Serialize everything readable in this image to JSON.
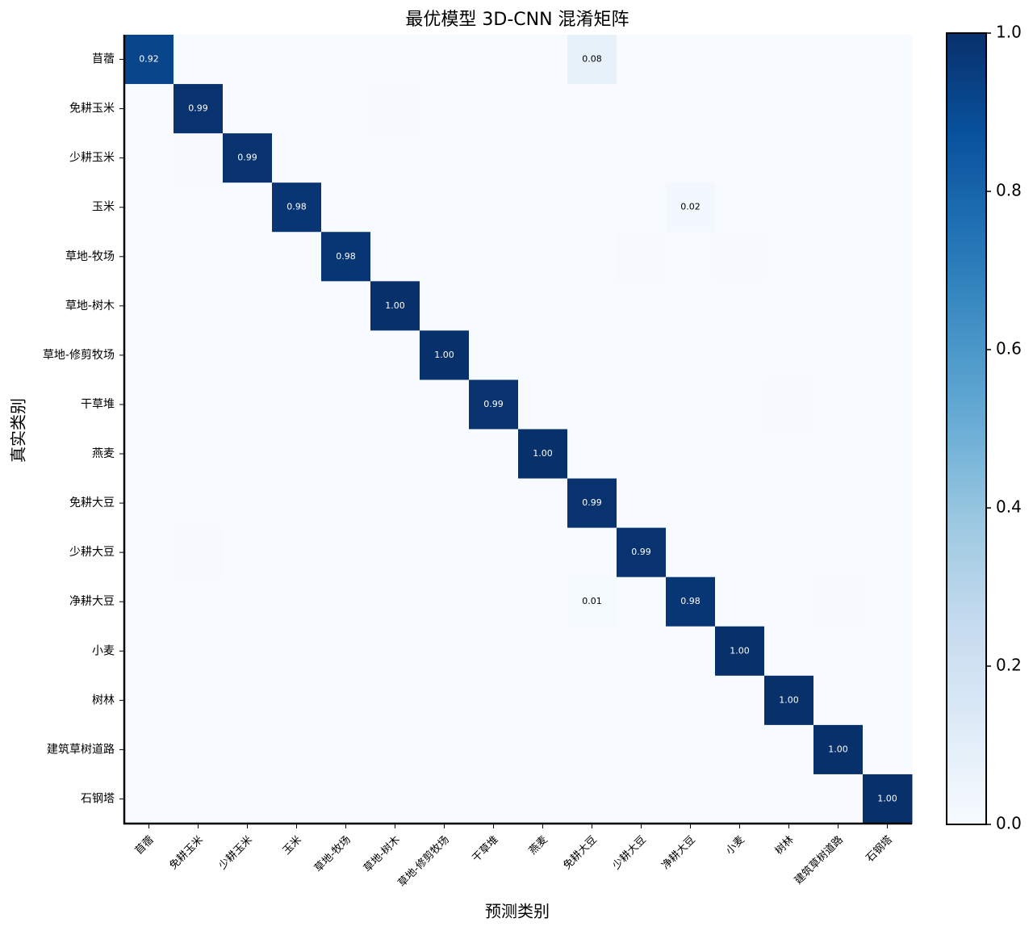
{
  "chart_data": {
    "type": "heatmap",
    "title": "最优模型 3D-CNN 混淆矩阵",
    "xlabel": "预测类别",
    "ylabel": "真实类别",
    "colormap": "Blues",
    "x_categories": [
      "苜蓿",
      "免耕玉米",
      "少耕玉米",
      "玉米",
      "草地-牧场",
      "草地-树木",
      "草地-修剪牧场",
      "干草堆",
      "燕麦",
      "免耕大豆",
      "少耕大豆",
      "净耕大豆",
      "小麦",
      "树林",
      "建筑草树道路",
      "石钢塔"
    ],
    "y_categories": [
      "苜蓿",
      "免耕玉米",
      "少耕玉米",
      "玉米",
      "草地-牧场",
      "草地-树木",
      "草地-修剪牧场",
      "干草堆",
      "燕麦",
      "免耕大豆",
      "少耕大豆",
      "净耕大豆",
      "小麦",
      "树林",
      "建筑草树道路",
      "石钢塔"
    ],
    "values": [
      [
        0.92,
        0,
        0,
        0,
        0,
        0,
        0,
        0,
        0,
        0.08,
        0,
        0,
        0,
        0,
        0,
        0
      ],
      [
        0,
        0.99,
        0,
        0,
        0,
        0.005,
        0,
        0,
        0,
        0,
        0,
        0,
        0,
        0,
        0,
        0
      ],
      [
        0,
        0.005,
        0.99,
        0,
        0,
        0,
        0,
        0,
        0,
        0,
        0,
        0,
        0,
        0,
        0,
        0
      ],
      [
        0,
        0,
        0,
        0.98,
        0,
        0,
        0,
        0,
        0,
        0,
        0,
        0.02,
        0,
        0,
        0,
        0
      ],
      [
        0,
        0,
        0,
        0,
        0.98,
        0,
        0,
        0,
        0,
        0,
        0.005,
        0,
        0.005,
        0,
        0,
        0
      ],
      [
        0,
        0,
        0,
        0,
        0,
        1,
        0,
        0,
        0,
        0,
        0,
        0,
        0,
        0,
        0,
        0
      ],
      [
        0,
        0,
        0,
        0,
        0,
        0,
        1,
        0,
        0,
        0,
        0,
        0,
        0,
        0,
        0,
        0
      ],
      [
        0,
        0,
        0,
        0,
        0,
        0,
        0,
        0.99,
        0,
        0,
        0,
        0,
        0,
        0.005,
        0,
        0
      ],
      [
        0,
        0,
        0,
        0,
        0,
        0,
        0,
        0,
        1,
        0,
        0,
        0,
        0,
        0,
        0,
        0
      ],
      [
        0,
        0,
        0,
        0,
        0,
        0,
        0,
        0,
        0,
        0.99,
        0,
        0,
        0,
        0,
        0,
        0
      ],
      [
        0,
        0.005,
        0,
        0,
        0,
        0,
        0,
        0,
        0,
        0,
        0.99,
        0,
        0,
        0,
        0,
        0
      ],
      [
        0,
        0,
        0,
        0,
        0,
        0,
        0,
        0,
        0,
        0.01,
        0,
        0.98,
        0,
        0,
        0.005,
        0
      ],
      [
        0,
        0,
        0,
        0,
        0,
        0,
        0,
        0,
        0,
        0,
        0,
        0,
        1,
        0,
        0,
        0
      ],
      [
        0,
        0,
        0,
        0,
        0,
        0,
        0,
        0,
        0,
        0,
        0,
        0,
        0,
        1,
        0,
        0
      ],
      [
        0,
        0,
        0,
        0,
        0,
        0,
        0,
        0,
        0,
        0,
        0,
        0,
        0,
        0,
        1,
        0
      ],
      [
        0,
        0,
        0,
        0,
        0,
        0,
        0,
        0,
        0,
        0,
        0,
        0,
        0,
        0,
        0,
        1
      ]
    ],
    "value_labels": [
      [
        "0.92",
        null,
        null,
        null,
        null,
        null,
        null,
        null,
        null,
        "0.08",
        null,
        null,
        null,
        null,
        null,
        null
      ],
      [
        null,
        "0.99",
        null,
        null,
        null,
        null,
        null,
        null,
        null,
        null,
        null,
        null,
        null,
        null,
        null,
        null
      ],
      [
        null,
        null,
        "0.99",
        null,
        null,
        null,
        null,
        null,
        null,
        null,
        null,
        null,
        null,
        null,
        null,
        null
      ],
      [
        null,
        null,
        null,
        "0.98",
        null,
        null,
        null,
        null,
        null,
        null,
        null,
        "0.02",
        null,
        null,
        null,
        null
      ],
      [
        null,
        null,
        null,
        null,
        "0.98",
        null,
        null,
        null,
        null,
        null,
        null,
        null,
        null,
        null,
        null,
        null
      ],
      [
        null,
        null,
        null,
        null,
        null,
        "1.00",
        null,
        null,
        null,
        null,
        null,
        null,
        null,
        null,
        null,
        null
      ],
      [
        null,
        null,
        null,
        null,
        null,
        null,
        "1.00",
        null,
        null,
        null,
        null,
        null,
        null,
        null,
        null,
        null
      ],
      [
        null,
        null,
        null,
        null,
        null,
        null,
        null,
        "0.99",
        null,
        null,
        null,
        null,
        null,
        null,
        null,
        null
      ],
      [
        null,
        null,
        null,
        null,
        null,
        null,
        null,
        null,
        "1.00",
        null,
        null,
        null,
        null,
        null,
        null,
        null
      ],
      [
        null,
        null,
        null,
        null,
        null,
        null,
        null,
        null,
        null,
        "0.99",
        null,
        null,
        null,
        null,
        null,
        null
      ],
      [
        null,
        null,
        null,
        null,
        null,
        null,
        null,
        null,
        null,
        null,
        "0.99",
        null,
        null,
        null,
        null,
        null
      ],
      [
        null,
        null,
        null,
        null,
        null,
        null,
        null,
        null,
        null,
        "0.01",
        null,
        "0.98",
        null,
        null,
        null,
        null
      ],
      [
        null,
        null,
        null,
        null,
        null,
        null,
        null,
        null,
        null,
        null,
        null,
        null,
        "1.00",
        null,
        null,
        null
      ],
      [
        null,
        null,
        null,
        null,
        null,
        null,
        null,
        null,
        null,
        null,
        null,
        null,
        null,
        "1.00",
        null,
        null
      ],
      [
        null,
        null,
        null,
        null,
        null,
        null,
        null,
        null,
        null,
        null,
        null,
        null,
        null,
        null,
        "1.00",
        null
      ],
      [
        null,
        null,
        null,
        null,
        null,
        null,
        null,
        null,
        null,
        null,
        null,
        null,
        null,
        null,
        null,
        "1.00"
      ]
    ],
    "clim": [
      0,
      1
    ],
    "cticks": [
      {
        "value": 0,
        "label": "0.0"
      },
      {
        "value": 0.2,
        "label": "0.2"
      },
      {
        "value": 0.4,
        "label": "0.4"
      },
      {
        "value": 0.6,
        "label": "0.6"
      },
      {
        "value": 0.8,
        "label": "0.8"
      },
      {
        "value": 1,
        "label": "1.0"
      }
    ]
  }
}
